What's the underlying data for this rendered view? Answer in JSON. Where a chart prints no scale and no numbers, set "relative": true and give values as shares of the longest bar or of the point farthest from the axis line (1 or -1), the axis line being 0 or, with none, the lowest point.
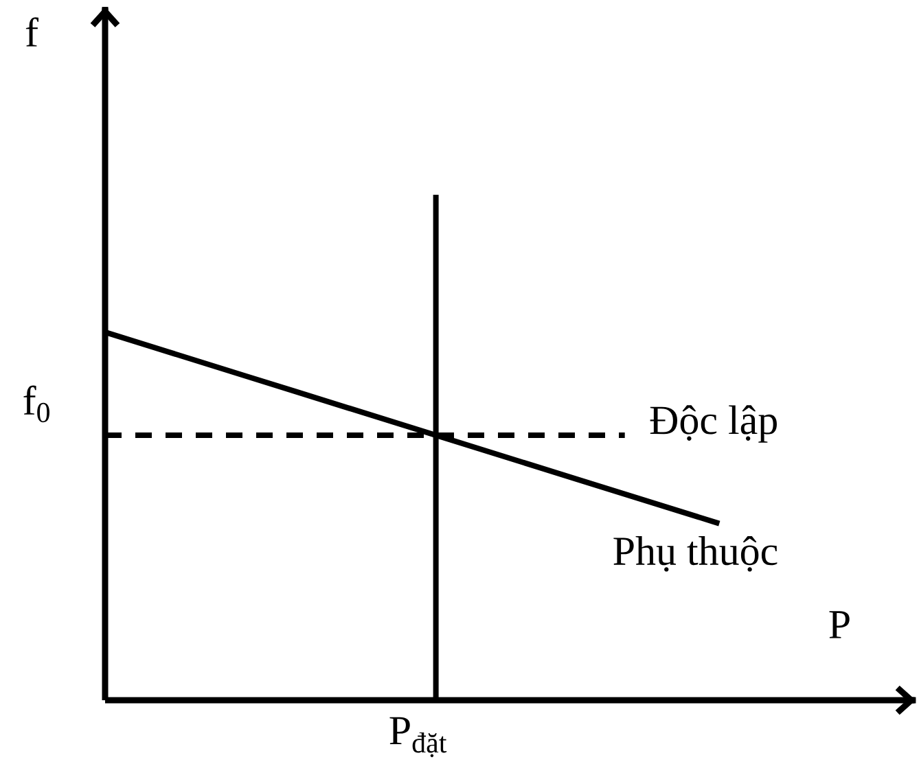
{
  "chart_data": {
    "type": "line",
    "relative": true,
    "xlabel": "P",
    "categories": [
      null,
      null,
      null,
      null,
      null,
      null,
      null,
      null,
      null,
      null,
      null,
      null,
      null,
      null,
      null,
      null,
      null
    ],
    "series": [
      {
        "name": "Độc lập",
        "color": "#000000",
        "line_style": "dashed",
        "values": [
          0.72,
          0.72,
          0.72,
          0.72,
          0.72,
          0.72,
          0.72,
          0.72,
          0.72,
          0.72,
          0.72,
          0.72,
          null,
          null,
          null,
          null,
          null
        ]
      },
      {
        "name": "Phụ thuộc",
        "color": "#000000",
        "line_style": "solid",
        "values": [
          1,
          0.96,
          0.92,
          0.88,
          0.84,
          0.8,
          0.76,
          0.72,
          0.68,
          0.64,
          0.6,
          0.56,
          0.52,
          0.48,
          null,
          null,
          null
        ]
      }
    ],
    "annotations": [
      "f",
      "f$_{0}$",
      "P$_{đặt}$"
    ],
    "marker": "none"
  }
}
